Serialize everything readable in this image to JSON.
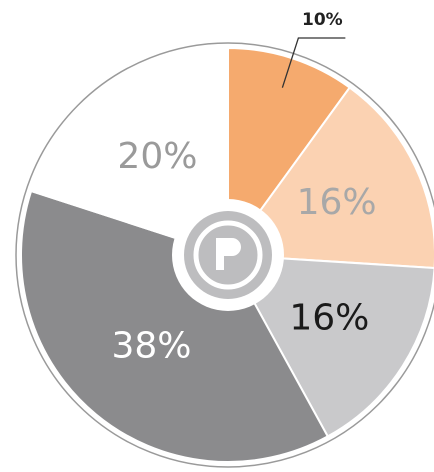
{
  "chart_data": {
    "type": "pie",
    "values": [
      10,
      16,
      16,
      38,
      20
    ],
    "value_labels": [
      "10%",
      "16%",
      "16%",
      "38%",
      "20%"
    ],
    "colors": [
      "#f5aa6e",
      "#fbd2b2",
      "#c9c9cb",
      "#8b8b8d",
      "#ffffff"
    ],
    "label_colors": [
      "#222222",
      "#a8a8a8",
      "#1a1a1a",
      "#ffffff",
      "#9a9a9a"
    ]
  }
}
